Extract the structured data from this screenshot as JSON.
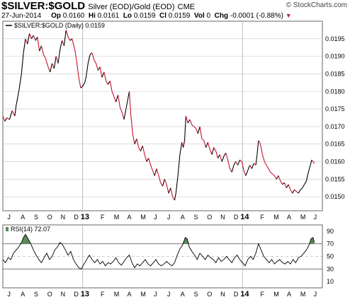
{
  "header": {
    "symbol": "$SILVER:$GOLD",
    "description": "Silver (EOD)/Gold (EOD)",
    "exchange": "CME",
    "date": "27-Jun-2014",
    "op_label": "Op",
    "op_value": "0.0160",
    "hi_label": "Hi",
    "hi_value": "0.0161",
    "lo_label": "Lo",
    "lo_value": "0.0159",
    "cl_label": "Cl",
    "cl_value": "0.0159",
    "vol_label": "Vol",
    "vol_value": "0",
    "chg_label": "Chg",
    "chg_value": "-0.0001 (-0.88%)",
    "watermark": "© StockCharts.com"
  },
  "colors": {
    "up": "#000000",
    "down": "#c8102e",
    "grid": "#c8c8c8",
    "rsi_fill": "#5a8a5a",
    "year_line": "#9ab0c0"
  },
  "chart_data": [
    {
      "type": "line",
      "title": "$SILVER:$GOLD (Daily) 0.0159",
      "legend_label": "$SILVER:$GOLD (Daily) 0.0159",
      "ylim": [
        0.0146,
        0.02
      ],
      "y_ticks": [
        "0.0150",
        "0.0155",
        "0.0160",
        "0.0165",
        "0.0170",
        "0.0175",
        "0.0180",
        "0.0185",
        "0.0190",
        "0.0195"
      ],
      "x_ticks": [
        "J",
        "A",
        "S",
        "O",
        "N",
        "D",
        "13",
        "F",
        "M",
        "A",
        "M",
        "J",
        "J",
        "A",
        "S",
        "O",
        "N",
        "D",
        "14",
        "F",
        "M",
        "A",
        "M",
        "J"
      ],
      "x_range_months": [
        0,
        24
      ],
      "series_points": [
        [
          0.0,
          0.0173
        ],
        [
          0.15,
          0.01715
        ],
        [
          0.3,
          0.01725
        ],
        [
          0.5,
          0.0172
        ],
        [
          0.7,
          0.01745
        ],
        [
          0.9,
          0.0173
        ],
        [
          1.0,
          0.0176
        ],
        [
          1.2,
          0.018
        ],
        [
          1.4,
          0.0185
        ],
        [
          1.55,
          0.0191
        ],
        [
          1.7,
          0.0195
        ],
        [
          1.85,
          0.01935
        ],
        [
          2.0,
          0.01965
        ],
        [
          2.15,
          0.0195
        ],
        [
          2.3,
          0.0196
        ],
        [
          2.45,
          0.01945
        ],
        [
          2.6,
          0.01955
        ],
        [
          2.75,
          0.01915
        ],
        [
          2.9,
          0.0193
        ],
        [
          3.05,
          0.01905
        ],
        [
          3.2,
          0.01895
        ],
        [
          3.4,
          0.0187
        ],
        [
          3.55,
          0.01855
        ],
        [
          3.7,
          0.0188
        ],
        [
          3.85,
          0.01865
        ],
        [
          4.0,
          0.019
        ],
        [
          4.15,
          0.0188
        ],
        [
          4.3,
          0.0192
        ],
        [
          4.45,
          0.01945
        ],
        [
          4.6,
          0.0193
        ],
        [
          4.75,
          0.01975
        ],
        [
          4.9,
          0.01955
        ],
        [
          5.05,
          0.01945
        ],
        [
          5.2,
          0.0195
        ],
        [
          5.4,
          0.0192
        ],
        [
          5.55,
          0.01885
        ],
        [
          5.7,
          0.0184
        ],
        [
          5.85,
          0.0181
        ],
        [
          6.0,
          0.01815
        ],
        [
          6.15,
          0.01825
        ],
        [
          6.25,
          0.0184
        ],
        [
          6.4,
          0.0188
        ],
        [
          6.55,
          0.01905
        ],
        [
          6.7,
          0.0191
        ],
        [
          6.85,
          0.0189
        ],
        [
          7.0,
          0.0188
        ],
        [
          7.15,
          0.0186
        ],
        [
          7.3,
          0.0187
        ],
        [
          7.45,
          0.0184
        ],
        [
          7.6,
          0.01855
        ],
        [
          7.75,
          0.0183
        ],
        [
          7.9,
          0.0182
        ],
        [
          8.05,
          0.0183
        ],
        [
          8.2,
          0.018
        ],
        [
          8.35,
          0.01785
        ],
        [
          8.5,
          0.0177
        ],
        [
          8.65,
          0.0179
        ],
        [
          8.8,
          0.01755
        ],
        [
          8.95,
          0.0174
        ],
        [
          9.1,
          0.0172
        ],
        [
          9.25,
          0.0175
        ],
        [
          9.4,
          0.0178
        ],
        [
          9.5,
          0.018
        ],
        [
          9.6,
          0.0174
        ],
        [
          9.75,
          0.0168
        ],
        [
          9.9,
          0.0165
        ],
        [
          10.05,
          0.01665
        ],
        [
          10.2,
          0.0164
        ],
        [
          10.35,
          0.0163
        ],
        [
          10.5,
          0.01645
        ],
        [
          10.65,
          0.0162
        ],
        [
          10.8,
          0.016
        ],
        [
          10.95,
          0.0161
        ],
        [
          11.1,
          0.0159
        ],
        [
          11.25,
          0.01575
        ],
        [
          11.4,
          0.0156
        ],
        [
          11.55,
          0.0158
        ],
        [
          11.7,
          0.0156
        ],
        [
          11.85,
          0.0154
        ],
        [
          12.0,
          0.0153
        ],
        [
          12.15,
          0.0155
        ],
        [
          12.3,
          0.01535
        ],
        [
          12.45,
          0.0151
        ],
        [
          12.6,
          0.01525
        ],
        [
          12.75,
          0.015
        ],
        [
          12.9,
          0.0149
        ],
        [
          13.0,
          0.0151
        ],
        [
          13.15,
          0.0156
        ],
        [
          13.3,
          0.0162
        ],
        [
          13.45,
          0.01655
        ],
        [
          13.55,
          0.0164
        ],
        [
          13.65,
          0.0166
        ],
        [
          13.75,
          0.0173
        ],
        [
          13.9,
          0.0171
        ],
        [
          14.05,
          0.0172
        ],
        [
          14.2,
          0.01705
        ],
        [
          14.35,
          0.017
        ],
        [
          14.5,
          0.01695
        ],
        [
          14.65,
          0.0168
        ],
        [
          14.8,
          0.017
        ],
        [
          14.95,
          0.01665
        ],
        [
          15.1,
          0.0166
        ],
        [
          15.25,
          0.0164
        ],
        [
          15.4,
          0.01655
        ],
        [
          15.55,
          0.01635
        ],
        [
          15.7,
          0.0162
        ],
        [
          15.85,
          0.0164
        ],
        [
          16.0,
          0.0163
        ],
        [
          16.15,
          0.0161
        ],
        [
          16.3,
          0.0162
        ],
        [
          16.45,
          0.016
        ],
        [
          16.6,
          0.01615
        ],
        [
          16.75,
          0.01625
        ],
        [
          16.9,
          0.01605
        ],
        [
          17.05,
          0.0158
        ],
        [
          17.2,
          0.0157
        ],
        [
          17.35,
          0.0159
        ],
        [
          17.5,
          0.016
        ],
        [
          17.65,
          0.0159
        ],
        [
          17.8,
          0.01605
        ],
        [
          17.95,
          0.016
        ],
        [
          18.1,
          0.01575
        ],
        [
          18.25,
          0.0156
        ],
        [
          18.4,
          0.01575
        ],
        [
          18.55,
          0.0159
        ],
        [
          18.7,
          0.0158
        ],
        [
          18.85,
          0.01595
        ],
        [
          19.0,
          0.0159
        ],
        [
          19.1,
          0.0162
        ],
        [
          19.2,
          0.0166
        ],
        [
          19.3,
          0.01655
        ],
        [
          19.4,
          0.0164
        ],
        [
          19.5,
          0.0162
        ],
        [
          19.65,
          0.016
        ],
        [
          19.8,
          0.0159
        ],
        [
          19.95,
          0.0158
        ],
        [
          20.1,
          0.0157
        ],
        [
          20.25,
          0.01565
        ],
        [
          20.4,
          0.0156
        ],
        [
          20.55,
          0.0155
        ],
        [
          20.7,
          0.0156
        ],
        [
          20.85,
          0.01545
        ],
        [
          21.0,
          0.01535
        ],
        [
          21.15,
          0.0154
        ],
        [
          21.3,
          0.01525
        ],
        [
          21.45,
          0.01535
        ],
        [
          21.6,
          0.0152
        ],
        [
          21.75,
          0.0151
        ],
        [
          21.9,
          0.0152
        ],
        [
          22.05,
          0.01515
        ],
        [
          22.2,
          0.0151
        ],
        [
          22.35,
          0.0152
        ],
        [
          22.5,
          0.01525
        ],
        [
          22.65,
          0.01535
        ],
        [
          22.8,
          0.01545
        ],
        [
          22.95,
          0.0157
        ],
        [
          23.1,
          0.0159
        ],
        [
          23.2,
          0.01605
        ],
        [
          23.3,
          0.016
        ],
        [
          23.4,
          0.01595
        ]
      ]
    },
    {
      "type": "line",
      "title": "RSI(14) 72.07",
      "legend_label": "RSI(14) 72.07",
      "ylim": [
        0,
        100
      ],
      "y_ticks": [
        "90",
        "70",
        "50",
        "30",
        "10"
      ],
      "reference_lines": [
        70,
        30
      ],
      "x_ticks": [
        "J",
        "A",
        "S",
        "O",
        "N",
        "D",
        "13",
        "F",
        "M",
        "A",
        "M",
        "J",
        "J",
        "A",
        "S",
        "O",
        "N",
        "D",
        "14",
        "F",
        "M",
        "A",
        "M",
        "J"
      ],
      "series_points": [
        [
          0.0,
          45
        ],
        [
          0.2,
          40
        ],
        [
          0.4,
          48
        ],
        [
          0.6,
          45
        ],
        [
          0.8,
          55
        ],
        [
          1.0,
          60
        ],
        [
          1.2,
          65
        ],
        [
          1.4,
          72
        ],
        [
          1.55,
          80
        ],
        [
          1.7,
          85
        ],
        [
          1.9,
          78
        ],
        [
          2.1,
          70
        ],
        [
          2.3,
          60
        ],
        [
          2.5,
          52
        ],
        [
          2.7,
          45
        ],
        [
          2.9,
          40
        ],
        [
          3.1,
          48
        ],
        [
          3.3,
          55
        ],
        [
          3.5,
          45
        ],
        [
          3.7,
          50
        ],
        [
          3.9,
          60
        ],
        [
          4.1,
          65
        ],
        [
          4.3,
          72
        ],
        [
          4.5,
          68
        ],
        [
          4.7,
          60
        ],
        [
          4.9,
          52
        ],
        [
          5.1,
          58
        ],
        [
          5.3,
          45
        ],
        [
          5.5,
          38
        ],
        [
          5.7,
          32
        ],
        [
          5.9,
          30
        ],
        [
          6.1,
          38
        ],
        [
          6.3,
          45
        ],
        [
          6.5,
          52
        ],
        [
          6.7,
          45
        ],
        [
          6.9,
          40
        ],
        [
          7.1,
          45
        ],
        [
          7.3,
          38
        ],
        [
          7.5,
          42
        ],
        [
          7.7,
          35
        ],
        [
          7.9,
          40
        ],
        [
          8.1,
          38
        ],
        [
          8.3,
          42
        ],
        [
          8.5,
          48
        ],
        [
          8.7,
          40
        ],
        [
          8.9,
          36
        ],
        [
          9.1,
          42
        ],
        [
          9.3,
          48
        ],
        [
          9.5,
          52
        ],
        [
          9.7,
          40
        ],
        [
          9.9,
          32
        ],
        [
          10.1,
          38
        ],
        [
          10.3,
          35
        ],
        [
          10.5,
          40
        ],
        [
          10.7,
          45
        ],
        [
          10.9,
          38
        ],
        [
          11.1,
          35
        ],
        [
          11.3,
          40
        ],
        [
          11.5,
          45
        ],
        [
          11.7,
          38
        ],
        [
          11.9,
          35
        ],
        [
          12.1,
          38
        ],
        [
          12.3,
          42
        ],
        [
          12.5,
          38
        ],
        [
          12.7,
          35
        ],
        [
          12.9,
          40
        ],
        [
          13.1,
          52
        ],
        [
          13.3,
          62
        ],
        [
          13.5,
          68
        ],
        [
          13.7,
          80
        ],
        [
          13.85,
          78
        ],
        [
          14.0,
          65
        ],
        [
          14.2,
          58
        ],
        [
          14.4,
          52
        ],
        [
          14.6,
          45
        ],
        [
          14.8,
          55
        ],
        [
          15.0,
          50
        ],
        [
          15.2,
          45
        ],
        [
          15.4,
          52
        ],
        [
          15.6,
          48
        ],
        [
          15.8,
          45
        ],
        [
          16.0,
          40
        ],
        [
          16.2,
          48
        ],
        [
          16.4,
          42
        ],
        [
          16.6,
          45
        ],
        [
          16.8,
          50
        ],
        [
          17.0,
          45
        ],
        [
          17.2,
          40
        ],
        [
          17.4,
          48
        ],
        [
          17.6,
          52
        ],
        [
          17.8,
          45
        ],
        [
          18.0,
          40
        ],
        [
          18.2,
          35
        ],
        [
          18.4,
          45
        ],
        [
          18.6,
          50
        ],
        [
          18.8,
          45
        ],
        [
          19.0,
          55
        ],
        [
          19.2,
          70
        ],
        [
          19.4,
          60
        ],
        [
          19.6,
          50
        ],
        [
          19.8,
          45
        ],
        [
          20.0,
          40
        ],
        [
          20.2,
          45
        ],
        [
          20.4,
          38
        ],
        [
          20.6,
          42
        ],
        [
          20.8,
          45
        ],
        [
          21.0,
          40
        ],
        [
          21.2,
          38
        ],
        [
          21.4,
          42
        ],
        [
          21.6,
          38
        ],
        [
          21.8,
          45
        ],
        [
          22.0,
          40
        ],
        [
          22.2,
          48
        ],
        [
          22.4,
          50
        ],
        [
          22.6,
          55
        ],
        [
          22.8,
          60
        ],
        [
          23.0,
          68
        ],
        [
          23.15,
          78
        ],
        [
          23.3,
          80
        ],
        [
          23.4,
          72
        ]
      ]
    }
  ]
}
